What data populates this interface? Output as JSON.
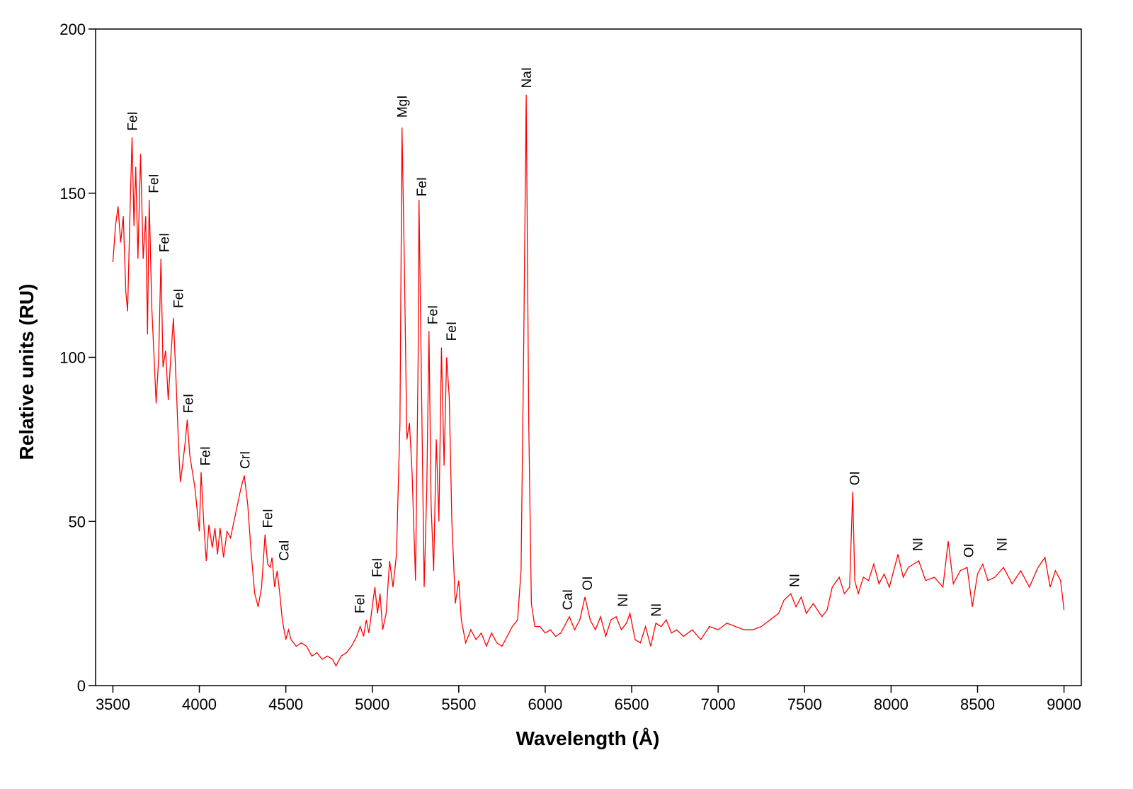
{
  "chart_data": {
    "type": "line",
    "xlabel": "Wavelength (Å)",
    "ylabel": "Relative units (RU)",
    "color": "#ff0000",
    "x": [
      3500,
      3515,
      3530,
      3545,
      3560,
      3575,
      3585,
      3600,
      3611,
      3622,
      3632,
      3645,
      3660,
      3675,
      3690,
      3700,
      3710,
      3725,
      3740,
      3750,
      3765,
      3778,
      3790,
      3805,
      3820,
      3835,
      3850,
      3865,
      3880,
      3890,
      3905,
      3920,
      3930,
      3945,
      3960,
      3975,
      3990,
      4000,
      4010,
      4025,
      4040,
      4055,
      4075,
      4090,
      4105,
      4120,
      4140,
      4160,
      4180,
      4200,
      4220,
      4240,
      4260,
      4280,
      4300,
      4320,
      4340,
      4360,
      4380,
      4395,
      4410,
      4420,
      4435,
      4450,
      4465,
      4480,
      4500,
      4515,
      4530,
      4560,
      4590,
      4620,
      4650,
      4680,
      4710,
      4740,
      4770,
      4790,
      4820,
      4850,
      4880,
      4910,
      4930,
      4950,
      4965,
      4980,
      5000,
      5015,
      5030,
      5045,
      5060,
      5080,
      5100,
      5120,
      5140,
      5160,
      5172,
      5185,
      5200,
      5215,
      5230,
      5250,
      5265,
      5270,
      5285,
      5300,
      5315,
      5328,
      5340,
      5355,
      5370,
      5385,
      5400,
      5415,
      5430,
      5445,
      5460,
      5480,
      5500,
      5515,
      5540,
      5570,
      5600,
      5630,
      5660,
      5690,
      5720,
      5750,
      5780,
      5810,
      5840,
      5860,
      5875,
      5890,
      5905,
      5920,
      5940,
      5970,
      6000,
      6030,
      6060,
      6090,
      6120,
      6140,
      6170,
      6200,
      6230,
      6260,
      6290,
      6320,
      6350,
      6380,
      6410,
      6440,
      6470,
      6490,
      6520,
      6550,
      6580,
      6610,
      6640,
      6670,
      6700,
      6730,
      6760,
      6800,
      6850,
      6900,
      6950,
      7000,
      7050,
      7100,
      7150,
      7200,
      7250,
      7300,
      7350,
      7380,
      7420,
      7450,
      7480,
      7510,
      7550,
      7600,
      7630,
      7660,
      7700,
      7730,
      7760,
      7778,
      7790,
      7810,
      7840,
      7870,
      7900,
      7930,
      7960,
      7990,
      8040,
      8070,
      8100,
      8130,
      8160,
      8200,
      8250,
      8300,
      8330,
      8360,
      8400,
      8440,
      8470,
      8500,
      8530,
      8560,
      8600,
      8650,
      8700,
      8750,
      8800,
      8850,
      8890,
      8920,
      8950,
      8980,
      9000
    ],
    "values": [
      129,
      140,
      146,
      135,
      143,
      120,
      114,
      146,
      167,
      140,
      158,
      130,
      162,
      130,
      143,
      107,
      148,
      115,
      98,
      86,
      100,
      130,
      97,
      102,
      87,
      100,
      112,
      93,
      73,
      62,
      68,
      75,
      81,
      70,
      65,
      60,
      52,
      47,
      65,
      50,
      38,
      49,
      42,
      48,
      40,
      48,
      39,
      47,
      45,
      50,
      55,
      60,
      64,
      55,
      40,
      28,
      24,
      30,
      46,
      37,
      36,
      39,
      30,
      35,
      28,
      20,
      14,
      17,
      14,
      12,
      13,
      12,
      9,
      10,
      8,
      9,
      8,
      6,
      9,
      10,
      12,
      15,
      18,
      15,
      20,
      16,
      24,
      30,
      22,
      28,
      17,
      22,
      38,
      30,
      40,
      80,
      170,
      130,
      75,
      80,
      65,
      32,
      100,
      148,
      90,
      30,
      60,
      108,
      55,
      35,
      75,
      50,
      103,
      67,
      100,
      88,
      50,
      25,
      32,
      20,
      13,
      17,
      14,
      16,
      12,
      16,
      13,
      12,
      15,
      18,
      20,
      35,
      100,
      180,
      80,
      25,
      18,
      18,
      16,
      17,
      15,
      16,
      19,
      21,
      17,
      20,
      27,
      20,
      17,
      21,
      15,
      20,
      21,
      17,
      19,
      22,
      14,
      13,
      18,
      12,
      19,
      18,
      20,
      16,
      17,
      15,
      17,
      14,
      18,
      17,
      19,
      18,
      17,
      17,
      18,
      20,
      22,
      26,
      28,
      24,
      27,
      22,
      25,
      21,
      23,
      30,
      33,
      28,
      30,
      59,
      32,
      28,
      33,
      32,
      37,
      31,
      34,
      30,
      40,
      33,
      36,
      37,
      38,
      32,
      33,
      30,
      44,
      31,
      35,
      36,
      24,
      34,
      37,
      32,
      33,
      36,
      31,
      35,
      30,
      36,
      39,
      30,
      35,
      32,
      23
    ],
    "xlim": [
      3400,
      9100
    ],
    "ylim": [
      0,
      200
    ],
    "xticks": [
      3500,
      4000,
      4500,
      5000,
      5500,
      6000,
      6500,
      7000,
      7500,
      8000,
      8500,
      9000
    ],
    "yticks": [
      0,
      50,
      100,
      150,
      200
    ],
    "annotations": [
      {
        "text": "FeI",
        "x": 3611,
        "y": 169
      },
      {
        "text": "FeI",
        "x": 3734,
        "y": 150
      },
      {
        "text": "FeI",
        "x": 3795,
        "y": 132
      },
      {
        "text": "FeI",
        "x": 3877,
        "y": 115
      },
      {
        "text": "FeI",
        "x": 3934,
        "y": 83
      },
      {
        "text": "FeI",
        "x": 4033,
        "y": 67
      },
      {
        "text": "CrI",
        "x": 4262,
        "y": 66
      },
      {
        "text": "FeI",
        "x": 4393,
        "y": 48
      },
      {
        "text": "CaI",
        "x": 4488,
        "y": 38
      },
      {
        "text": "FeI",
        "x": 4926,
        "y": 22
      },
      {
        "text": "FeI",
        "x": 5025,
        "y": 33
      },
      {
        "text": "MgI",
        "x": 5172,
        "y": 173
      },
      {
        "text": "FeI",
        "x": 5283,
        "y": 149
      },
      {
        "text": "FeI",
        "x": 5348,
        "y": 110
      },
      {
        "text": "FeI",
        "x": 5455,
        "y": 105
      },
      {
        "text": "NaI",
        "x": 5889,
        "y": 182
      },
      {
        "text": "CaI",
        "x": 6127,
        "y": 23
      },
      {
        "text": "OI",
        "x": 6242,
        "y": 29
      },
      {
        "text": "NI",
        "x": 6447,
        "y": 24
      },
      {
        "text": "NI",
        "x": 6639,
        "y": 21
      },
      {
        "text": "NI",
        "x": 7439,
        "y": 30
      },
      {
        "text": "OI",
        "x": 7787,
        "y": 61
      },
      {
        "text": "NI",
        "x": 8152,
        "y": 41
      },
      {
        "text": "OI",
        "x": 8447,
        "y": 39
      },
      {
        "text": "NI",
        "x": 8639,
        "y": 41
      }
    ]
  }
}
